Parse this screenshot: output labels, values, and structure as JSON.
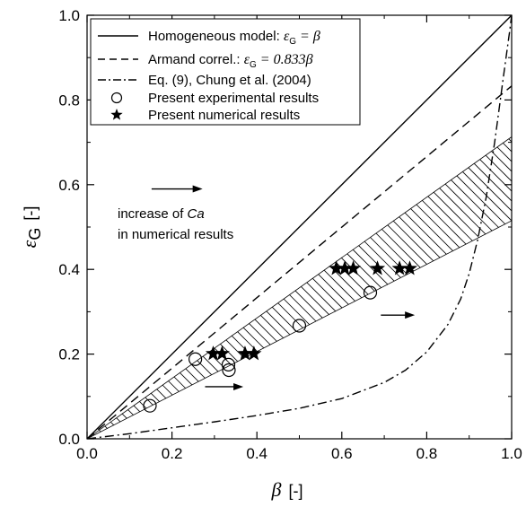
{
  "chart_data": {
    "type": "scatter",
    "xlabel": "β",
    "xlabel_unit": "[-]",
    "ylabel": "ε",
    "ylabel_sub": "G",
    "ylabel_unit": "[-]",
    "xlim": [
      0.0,
      1.0
    ],
    "ylim": [
      0.0,
      1.0
    ],
    "x_ticks": [
      "0.0",
      "0.2",
      "0.4",
      "0.6",
      "0.8",
      "1.0"
    ],
    "y_ticks": [
      "0.0",
      "0.2",
      "0.4",
      "0.6",
      "0.8",
      "1.0"
    ],
    "legend_position": "top-left",
    "legend": [
      {
        "style": "solid",
        "text": "Homogeneous model: ",
        "formula": "ε_G = β"
      },
      {
        "style": "dashed",
        "text": "Armand correl.: ",
        "formula": "ε_G = 0.833β"
      },
      {
        "style": "dashdot",
        "text": "Eq. (9), Chung et al. (2004)",
        "formula": ""
      },
      {
        "style": "circle",
        "text": "Present experimental results",
        "formula": ""
      },
      {
        "style": "star",
        "text": "Present numerical results",
        "formula": ""
      }
    ],
    "series": [
      {
        "name": "Homogeneous model",
        "style": "solid",
        "points": [
          [
            0,
            0
          ],
          [
            1,
            1
          ]
        ]
      },
      {
        "name": "Armand correl.",
        "style": "dashed",
        "points": [
          [
            0,
            0
          ],
          [
            1,
            0.833
          ]
        ]
      },
      {
        "name": "Eq. (9), Chung et al. (2004)",
        "style": "dashdot",
        "points": [
          [
            0,
            0
          ],
          [
            0.1,
            0.012
          ],
          [
            0.2,
            0.026
          ],
          [
            0.3,
            0.04
          ],
          [
            0.4,
            0.055
          ],
          [
            0.5,
            0.072
          ],
          [
            0.6,
            0.095
          ],
          [
            0.7,
            0.133
          ],
          [
            0.75,
            0.162
          ],
          [
            0.8,
            0.205
          ],
          [
            0.85,
            0.27
          ],
          [
            0.88,
            0.33
          ],
          [
            0.9,
            0.39
          ],
          [
            0.92,
            0.47
          ],
          [
            0.94,
            0.57
          ],
          [
            0.96,
            0.7
          ],
          [
            0.98,
            0.85
          ],
          [
            0.995,
            0.96
          ],
          [
            1.0,
            1.0
          ]
        ]
      },
      {
        "name": "Present experimental results",
        "style": "circle",
        "points": [
          [
            0.148,
            0.078
          ],
          [
            0.255,
            0.188
          ],
          [
            0.333,
            0.175
          ],
          [
            0.334,
            0.162
          ],
          [
            0.5,
            0.267
          ],
          [
            0.667,
            0.345
          ]
        ]
      },
      {
        "name": "Present numerical results",
        "style": "star",
        "points": [
          [
            0.297,
            0.201
          ],
          [
            0.318,
            0.201
          ],
          [
            0.372,
            0.201
          ],
          [
            0.393,
            0.201
          ],
          [
            0.587,
            0.402
          ],
          [
            0.607,
            0.402
          ],
          [
            0.627,
            0.402
          ],
          [
            0.684,
            0.402
          ],
          [
            0.736,
            0.402
          ],
          [
            0.76,
            0.402
          ]
        ]
      }
    ],
    "band": {
      "upper": [
        [
          0,
          0
        ],
        [
          1,
          0.713
        ]
      ],
      "lower": [
        [
          0,
          0
        ],
        [
          1,
          0.515
        ]
      ],
      "fill": "hatched"
    },
    "annotations": {
      "ca_line1": "increase of ",
      "ca_italic": "Ca",
      "ca_line2": "in numerical results",
      "arrows": [
        {
          "from": [
            0.152,
            0.59
          ],
          "to": [
            0.272,
            0.59
          ]
        },
        {
          "from": [
            0.692,
            0.292
          ],
          "to": [
            0.772,
            0.292
          ]
        },
        {
          "from": [
            0.278,
            0.123
          ],
          "to": [
            0.368,
            0.123
          ]
        }
      ]
    }
  }
}
